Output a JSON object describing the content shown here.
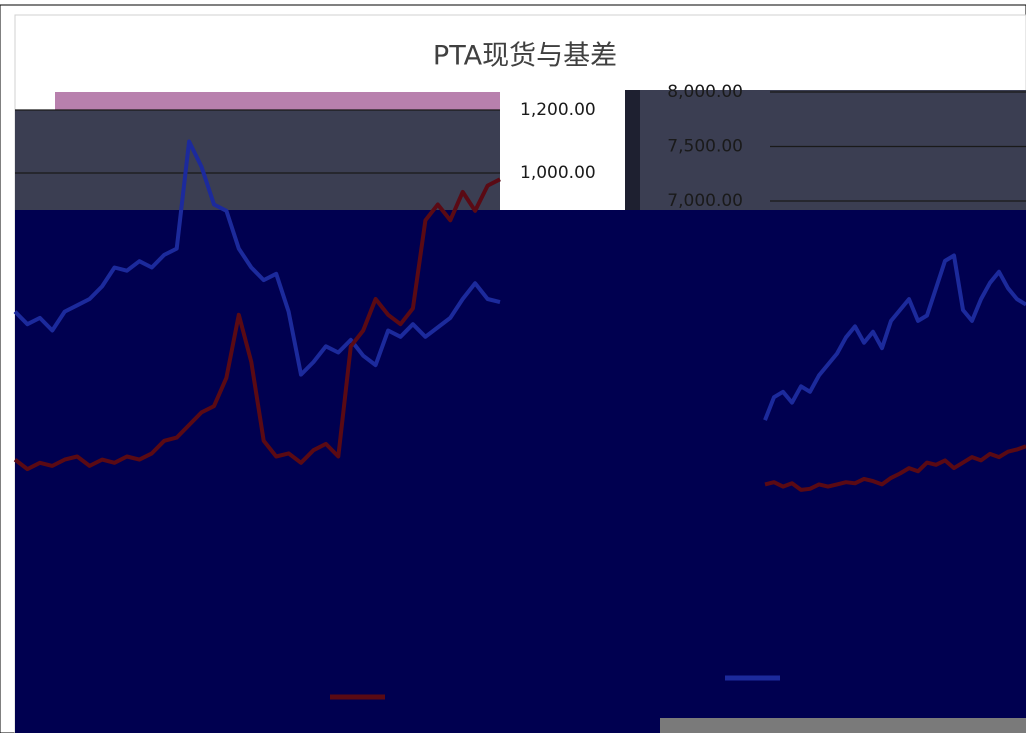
{
  "title": "PTA现货与基差",
  "chart_data": [
    {
      "type": "line",
      "ylim": [
        -200,
        1200
      ],
      "yticks": [
        {
          "value": 1000,
          "label": "1,000.00"
        },
        {
          "value": 1200,
          "label": "1,200.00"
        }
      ],
      "grid": true,
      "series": [
        {
          "color": "#1c2a9c",
          "values": [
            560,
            520,
            540,
            500,
            560,
            580,
            600,
            640,
            700,
            690,
            720,
            700,
            740,
            760,
            1100,
            1020,
            900,
            880,
            760,
            700,
            660,
            680,
            560,
            360,
            400,
            450,
            430,
            470,
            420,
            390,
            500,
            480,
            520,
            480,
            510,
            540,
            600,
            650,
            600,
            590
          ]
        },
        {
          "color": "#5a0a14",
          "values": [
            90,
            60,
            80,
            70,
            90,
            100,
            70,
            90,
            80,
            100,
            90,
            110,
            150,
            160,
            200,
            240,
            260,
            350,
            550,
            400,
            150,
            100,
            110,
            80,
            120,
            140,
            100,
            450,
            500,
            600,
            550,
            520,
            570,
            850,
            900,
            850,
            940,
            880,
            960,
            980
          ]
        }
      ]
    },
    {
      "type": "line",
      "ylim": [
        4000,
        8000
      ],
      "yticks": [
        {
          "value": 7000,
          "label": "7,000.00"
        },
        {
          "value": 7500,
          "label": "7,500.00"
        },
        {
          "value": 8000,
          "label": "8,000.00"
        }
      ],
      "grid": true,
      "series": [
        {
          "color": "#1c2a9c",
          "values": [
            4990,
            5200,
            5250,
            5150,
            5300,
            5250,
            5400,
            5500,
            5600,
            5750,
            5850,
            5700,
            5800,
            5650,
            5900,
            6000,
            6100,
            5900,
            5950,
            6200,
            6450,
            6500,
            6000,
            5900,
            6100,
            6250,
            6350,
            6200,
            6100,
            6050
          ]
        },
        {
          "color": "#5a0a14",
          "values": [
            4400,
            4420,
            4380,
            4410,
            4350,
            4360,
            4400,
            4380,
            4400,
            4420,
            4410,
            4450,
            4430,
            4400,
            4460,
            4500,
            4550,
            4520,
            4600,
            4580,
            4620,
            4550,
            4600,
            4650,
            4620,
            4680,
            4650,
            4700,
            4720,
            4750
          ]
        }
      ]
    }
  ]
}
